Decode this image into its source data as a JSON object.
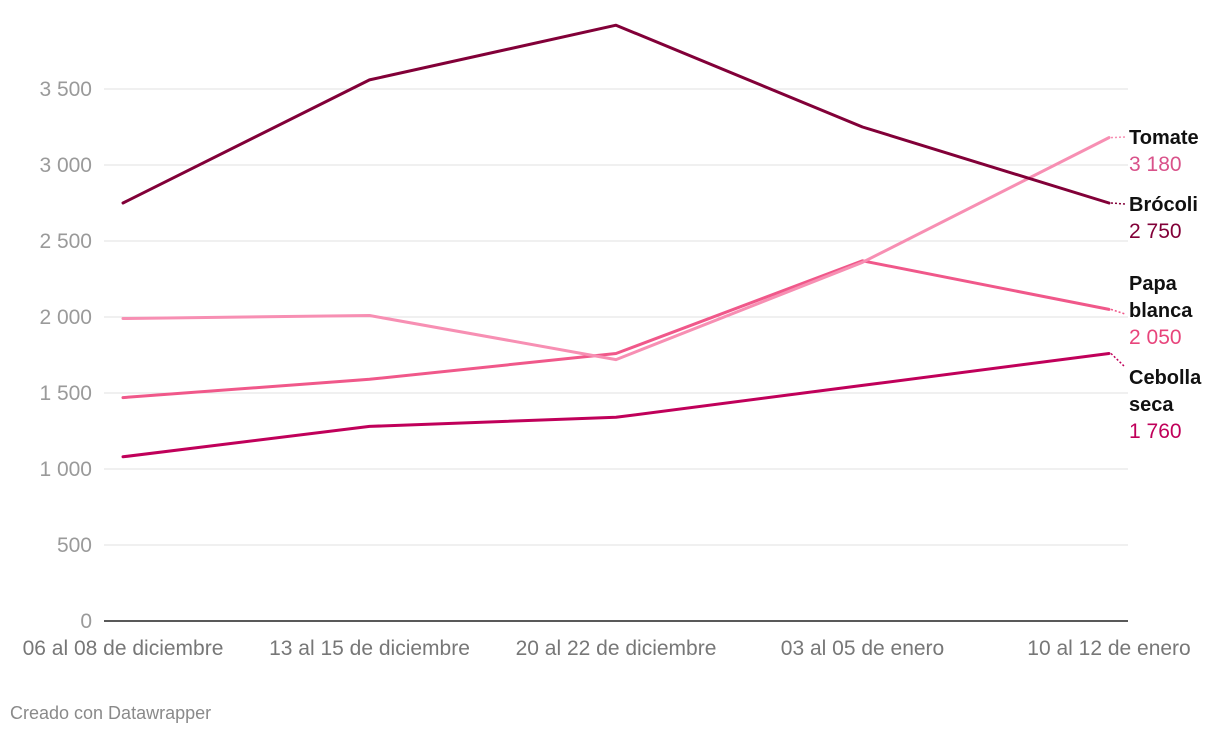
{
  "chart_data": {
    "type": "line",
    "title": "",
    "xlabel": "",
    "ylabel": "",
    "x": [
      "06 al 08 de diciembre",
      "13 al 15 de diciembre",
      "20 al 22 de diciembre",
      "03 al 05 de enero",
      "10 al 12 de enero"
    ],
    "ylim": [
      0,
      3900
    ],
    "yticks": [
      0,
      500,
      1000,
      1500,
      2000,
      2500,
      3000,
      3500
    ],
    "ytick_labels": [
      "0",
      "500",
      "1 000",
      "1 500",
      "2 000",
      "2 500",
      "3 000",
      "3 500"
    ],
    "grid": true,
    "legend": "direct labels at right",
    "series": [
      {
        "name": "Tomate",
        "label_lines": [
          "Tomate"
        ],
        "value_label": "3 180",
        "color": "#f78fb3",
        "label_color": "#d9528a",
        "values": [
          1990,
          2010,
          1720,
          2360,
          3180
        ]
      },
      {
        "name": "Brócoli",
        "label_lines": [
          "Brócoli"
        ],
        "value_label": "2 750",
        "color": "#820038",
        "label_color": "#820038",
        "values": [
          2750,
          3560,
          3920,
          3250,
          2750
        ]
      },
      {
        "name": "Papa blanca",
        "label_lines": [
          "Papa",
          "blanca"
        ],
        "value_label": "2 050",
        "color": "#f0588a",
        "label_color": "#e8457c",
        "values": [
          1470,
          1590,
          1760,
          2370,
          2050
        ]
      },
      {
        "name": "Cebolla seca",
        "label_lines": [
          "Cebolla",
          "seca"
        ],
        "value_label": "1 760",
        "color": "#c0005a",
        "label_color": "#c0005a",
        "values": [
          1080,
          1280,
          1340,
          1550,
          1760
        ]
      }
    ]
  },
  "footer": {
    "credit": "Creado con Datawrapper"
  }
}
